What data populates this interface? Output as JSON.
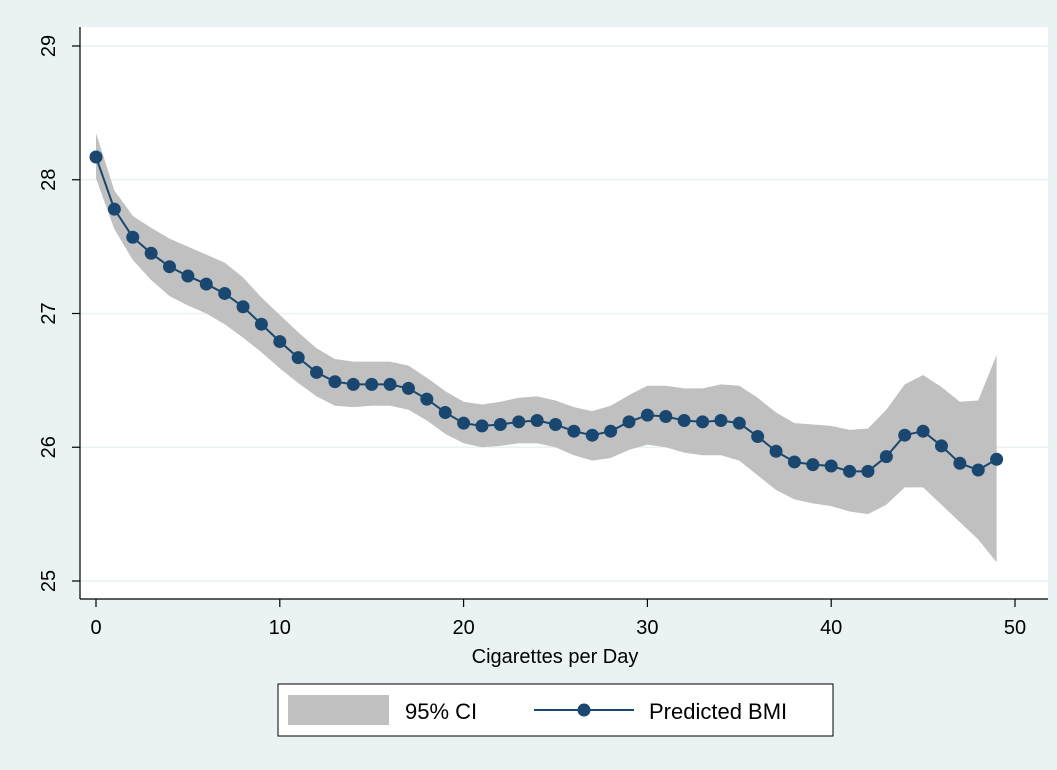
{
  "chart_data": {
    "type": "line",
    "xlabel": "Cigarettes per Day",
    "ylabel": "",
    "xlim": [
      0,
      50
    ],
    "ylim": [
      25,
      29
    ],
    "xticks": [
      0,
      10,
      20,
      30,
      40,
      50
    ],
    "yticks": [
      25,
      26,
      27,
      28,
      29
    ],
    "grid": "horizontal",
    "legend_position": "bottom",
    "x": [
      0,
      1,
      2,
      3,
      4,
      5,
      6,
      7,
      8,
      9,
      10,
      11,
      12,
      13,
      14,
      15,
      16,
      17,
      18,
      19,
      20,
      21,
      22,
      23,
      24,
      25,
      26,
      27,
      28,
      29,
      30,
      31,
      32,
      33,
      34,
      35,
      36,
      37,
      38,
      39,
      40,
      41,
      42,
      43,
      44,
      45,
      46,
      47,
      48,
      49,
      50
    ],
    "series": [
      {
        "name": "Predicted BMI",
        "color": "#1a476f",
        "values": [
          28.17,
          27.78,
          27.57,
          27.45,
          27.35,
          27.28,
          27.22,
          27.15,
          27.05,
          26.92,
          26.79,
          26.67,
          26.56,
          26.49,
          26.47,
          26.47,
          26.47,
          26.44,
          26.36,
          26.26,
          26.18,
          26.16,
          26.17,
          26.19,
          26.2,
          26.17,
          26.12,
          26.09,
          26.12,
          26.19,
          26.24,
          26.23,
          26.2,
          26.19,
          26.2,
          26.18,
          26.08,
          25.97,
          25.89,
          25.87,
          25.86,
          25.82,
          25.82,
          25.93,
          26.09,
          26.12,
          26.01,
          25.88,
          25.83,
          25.91,
          null
        ]
      }
    ],
    "ci": {
      "name": "95% CI",
      "color": "#c0c0c0",
      "upper": [
        28.35,
        27.92,
        27.73,
        27.64,
        27.56,
        27.5,
        27.44,
        27.38,
        27.27,
        27.12,
        26.99,
        26.86,
        26.74,
        26.66,
        26.64,
        26.64,
        26.64,
        26.61,
        26.52,
        26.42,
        26.34,
        26.32,
        26.34,
        26.37,
        26.38,
        26.35,
        26.3,
        26.27,
        26.31,
        26.39,
        26.46,
        26.46,
        26.44,
        26.44,
        26.47,
        26.46,
        26.37,
        26.26,
        26.18,
        26.17,
        26.16,
        26.13,
        26.14,
        26.28,
        26.47,
        26.54,
        26.45,
        26.34,
        26.35,
        26.69,
        null
      ],
      "lower": [
        28.01,
        27.63,
        27.4,
        27.25,
        27.13,
        27.06,
        27.0,
        26.92,
        26.82,
        26.71,
        26.59,
        26.48,
        26.38,
        26.31,
        26.3,
        26.31,
        26.31,
        26.28,
        26.2,
        26.1,
        26.03,
        26.0,
        26.01,
        26.03,
        26.03,
        26.0,
        25.94,
        25.9,
        25.92,
        25.98,
        26.02,
        26.0,
        25.96,
        25.94,
        25.94,
        25.9,
        25.79,
        25.68,
        25.61,
        25.58,
        25.56,
        25.52,
        25.5,
        25.57,
        25.7,
        25.7,
        25.57,
        25.44,
        25.31,
        25.14,
        null
      ]
    }
  },
  "legend": {
    "ci_label": "95% CI",
    "line_label": "Predicted BMI"
  },
  "colors": {
    "background": "#eaf2f3",
    "plot_area": "#ffffff",
    "grid": "#eaf2f3",
    "line": "#1a476f",
    "ci_band": "#c0c0c0"
  }
}
